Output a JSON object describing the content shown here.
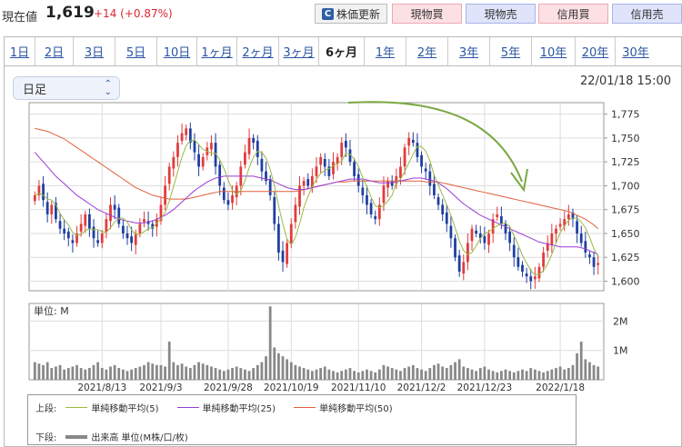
{
  "header": {
    "price_label": "現在値",
    "price": "1,619",
    "change": "+14 (+0.87%)",
    "refresh_label": "株価更新",
    "refresh_icon": "C",
    "buttons": [
      "現物買",
      "現物売",
      "信用買",
      "信用売"
    ]
  },
  "tabs": [
    "1日",
    "2日",
    "3日",
    "5日",
    "10日",
    "1ヶ月",
    "2ヶ月",
    "3ヶ月",
    "6ヶ月",
    "1年",
    "2年",
    "3年",
    "5年",
    "10年",
    "20年",
    "30年"
  ],
  "active_tab": "6ヶ月",
  "period_select": "日足",
  "datetime": "22/01/18 15:00",
  "colors": {
    "up": "#e23b3b",
    "down": "#1e3fa0",
    "ma5": "#9ab846",
    "ma25": "#9b3bd6",
    "ma50": "#e0603a",
    "volume": "#888888",
    "arrow": "#79a841"
  },
  "legend": {
    "upper_label": "上段:",
    "lower_label": "下段:",
    "ma5": "単純移動平均(5)",
    "ma25": "単純移動平均(25)",
    "ma50": "単純移動平均(50)",
    "volume": "出来高 単位(M株/口/枚)"
  },
  "chart_data": [
    {
      "type": "candlestick",
      "x_ticks": [
        "2021/8/13",
        "2021/9/3",
        "2021/9/28",
        "2021/10/19",
        "2021/11/10",
        "2021/12/2",
        "2021/12/23",
        "2022/1/18"
      ],
      "y_ticks": [
        "1,775",
        "1,750",
        "1,725",
        "1,700",
        "1,675",
        "1,650",
        "1,625",
        "1,600"
      ],
      "ylim": [
        1590,
        1787
      ],
      "close": [
        1690,
        1700,
        1685,
        1670,
        1680,
        1665,
        1655,
        1650,
        1645,
        1640,
        1650,
        1660,
        1670,
        1655,
        1645,
        1640,
        1650,
        1665,
        1680,
        1675,
        1660,
        1650,
        1645,
        1640,
        1650,
        1660,
        1665,
        1660,
        1655,
        1665,
        1680,
        1700,
        1720,
        1730,
        1745,
        1755,
        1760,
        1745,
        1735,
        1720,
        1730,
        1740,
        1745,
        1720,
        1700,
        1685,
        1680,
        1690,
        1700,
        1720,
        1735,
        1750,
        1745,
        1730,
        1715,
        1705,
        1690,
        1660,
        1630,
        1620,
        1640,
        1660,
        1680,
        1700,
        1705,
        1700,
        1710,
        1720,
        1730,
        1720,
        1710,
        1725,
        1730,
        1745,
        1740,
        1725,
        1710,
        1700,
        1690,
        1680,
        1670,
        1665,
        1680,
        1700,
        1705,
        1700,
        1710,
        1720,
        1740,
        1750,
        1745,
        1730,
        1720,
        1715,
        1700,
        1690,
        1680,
        1670,
        1660,
        1645,
        1625,
        1610,
        1620,
        1640,
        1655,
        1650,
        1645,
        1640,
        1650,
        1665,
        1670,
        1660,
        1650,
        1640,
        1625,
        1615,
        1610,
        1605,
        1600,
        1605,
        1615,
        1630,
        1640,
        1650,
        1655,
        1660,
        1665,
        1670,
        1665,
        1650,
        1640,
        1630,
        1625,
        1615,
        1619
      ],
      "ma5": [
        1690,
        1692,
        1690,
        1686,
        1685,
        1680,
        1671,
        1664,
        1659,
        1651,
        1648,
        1649,
        1653,
        1655,
        1654,
        1654,
        1652,
        1651,
        1656,
        1662,
        1666,
        1666,
        1662,
        1654,
        1649,
        1649,
        1652,
        1655,
        1656,
        1661,
        1665,
        1672,
        1684,
        1699,
        1715,
        1730,
        1742,
        1747,
        1748,
        1743,
        1738,
        1736,
        1734,
        1734,
        1727,
        1718,
        1706,
        1695,
        1691,
        1695,
        1705,
        1719,
        1730,
        1736,
        1735,
        1729,
        1717,
        1700,
        1679,
        1660,
        1644,
        1638,
        1646,
        1660,
        1677,
        1689,
        1699,
        1707,
        1713,
        1716,
        1718,
        1721,
        1723,
        1726,
        1734,
        1733,
        1728,
        1720,
        1709,
        1699,
        1688,
        1679,
        1677,
        1679,
        1684,
        1690,
        1703,
        1707,
        1715,
        1724,
        1733,
        1741,
        1741,
        1736,
        1726,
        1711,
        1701,
        1690,
        1680,
        1669,
        1656,
        1642,
        1632,
        1628,
        1630,
        1637,
        1645,
        1650,
        1652,
        1655,
        1658,
        1660,
        1661,
        1657,
        1648,
        1638,
        1627,
        1619,
        1611,
        1607,
        1607,
        1611,
        1618,
        1628,
        1640,
        1651,
        1658,
        1664,
        1666,
        1666,
        1662,
        1656,
        1646,
        1634,
        1626
      ],
      "ma25": [
        1735,
        1730,
        1725,
        1720,
        1715,
        1710,
        1706,
        1702,
        1698,
        1694,
        1690,
        1687,
        1684,
        1681,
        1678,
        1675,
        1673,
        1671,
        1669,
        1667,
        1665,
        1664,
        1663,
        1662,
        1661,
        1661,
        1661,
        1662,
        1663,
        1665,
        1667,
        1669,
        1672,
        1675,
        1679,
        1683,
        1687,
        1691,
        1695,
        1698,
        1701,
        1704,
        1706,
        1708,
        1709,
        1710,
        1710,
        1710,
        1710,
        1710,
        1710,
        1710,
        1710,
        1709,
        1708,
        1707,
        1706,
        1704,
        1702,
        1700,
        1698,
        1697,
        1696,
        1696,
        1696,
        1697,
        1698,
        1699,
        1700,
        1701,
        1702,
        1703,
        1704,
        1705,
        1706,
        1707,
        1707,
        1707,
        1707,
        1706,
        1705,
        1704,
        1703,
        1703,
        1703,
        1703,
        1704,
        1705,
        1706,
        1707,
        1708,
        1708,
        1708,
        1707,
        1706,
        1705,
        1703,
        1700,
        1697,
        1693,
        1689,
        1685,
        1681,
        1678,
        1675,
        1672,
        1669,
        1667,
        1665,
        1663,
        1661,
        1659,
        1657,
        1655,
        1653,
        1651,
        1649,
        1647,
        1645,
        1643,
        1641,
        1640,
        1639,
        1638,
        1637,
        1636,
        1636,
        1636,
        1636,
        1636,
        1635,
        1634,
        1632,
        1630,
        1628
      ],
      "ma50": [
        1760,
        1759,
        1758,
        1757,
        1755,
        1753,
        1751,
        1749,
        1746,
        1743,
        1740,
        1737,
        1734,
        1731,
        1728,
        1725,
        1722,
        1719,
        1716,
        1713,
        1710,
        1707,
        1704,
        1701,
        1698,
        1696,
        1694,
        1692,
        1690,
        1689,
        1688,
        1687,
        1686,
        1686,
        1686,
        1686,
        1686,
        1687,
        1688,
        1689,
        1690,
        1691,
        1692,
        1693,
        1694,
        1694,
        1694,
        1694,
        1694,
        1694,
        1694,
        1694,
        1694,
        1694,
        1694,
        1694,
        1694,
        1694,
        1694,
        1694,
        1694,
        1694,
        1694,
        1695,
        1696,
        1697,
        1698,
        1699,
        1700,
        1701,
        1702,
        1703,
        1704,
        1704,
        1704,
        1705,
        1705,
        1705,
        1705,
        1705,
        1705,
        1705,
        1705,
        1705,
        1705,
        1705,
        1705,
        1705,
        1705,
        1705,
        1705,
        1705,
        1705,
        1704,
        1704,
        1704,
        1704,
        1703,
        1702,
        1701,
        1700,
        1699,
        1698,
        1697,
        1696,
        1695,
        1694,
        1693,
        1692,
        1691,
        1690,
        1689,
        1688,
        1687,
        1686,
        1685,
        1684,
        1683,
        1682,
        1681,
        1680,
        1679,
        1678,
        1677,
        1676,
        1675,
        1674,
        1673,
        1671,
        1669,
        1667,
        1665,
        1662,
        1659,
        1655
      ]
    },
    {
      "type": "bar",
      "ylabel": "単位: M",
      "y_ticks": [
        "2M",
        "1M"
      ],
      "ylim": [
        0,
        2.6
      ],
      "volume": [
        0.6,
        0.55,
        0.5,
        0.6,
        0.4,
        0.45,
        0.5,
        0.35,
        0.4,
        0.45,
        0.5,
        0.4,
        0.35,
        0.4,
        0.5,
        0.6,
        0.4,
        0.35,
        0.45,
        0.5,
        0.4,
        0.35,
        0.3,
        0.35,
        0.4,
        0.45,
        0.5,
        0.6,
        0.55,
        0.5,
        0.5,
        0.45,
        1.3,
        0.6,
        0.5,
        0.55,
        0.45,
        0.4,
        0.5,
        0.6,
        0.55,
        0.5,
        0.45,
        0.4,
        0.35,
        0.3,
        0.35,
        0.4,
        0.45,
        0.4,
        0.35,
        0.3,
        0.4,
        0.5,
        0.6,
        0.8,
        2.5,
        1.1,
        0.9,
        0.8,
        0.7,
        0.6,
        0.5,
        0.45,
        0.4,
        0.35,
        0.3,
        0.35,
        0.4,
        0.45,
        0.35,
        0.3,
        0.25,
        0.3,
        0.35,
        0.4,
        0.3,
        0.25,
        0.3,
        0.35,
        0.3,
        0.25,
        0.35,
        0.5,
        0.45,
        0.4,
        0.35,
        0.3,
        0.4,
        0.45,
        0.5,
        0.4,
        0.35,
        0.3,
        0.4,
        0.5,
        0.55,
        0.45,
        0.4,
        0.5,
        0.6,
        0.7,
        0.45,
        0.4,
        0.35,
        0.3,
        0.4,
        0.45,
        0.35,
        0.3,
        0.25,
        0.3,
        0.35,
        0.3,
        0.25,
        0.3,
        0.35,
        0.3,
        0.4,
        0.35,
        0.3,
        0.25,
        0.3,
        0.35,
        0.4,
        0.45,
        0.35,
        0.4,
        0.5,
        0.9,
        1.3,
        0.7,
        0.6,
        0.5,
        0.45
      ]
    }
  ]
}
